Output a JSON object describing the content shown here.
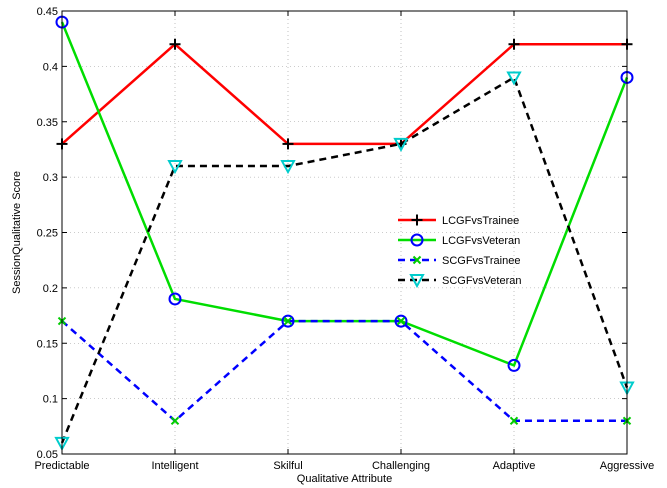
{
  "chart_data": {
    "type": "line",
    "categories": [
      "Predictable",
      "Intelligent",
      "Skilful",
      "Challenging",
      "Adaptive",
      "Aggressive"
    ],
    "xlabel": "Qualitative Attribute",
    "ylabel": "SessionQualitative Score",
    "ylim": [
      0.05,
      0.45
    ],
    "yticks": [
      "0.05",
      "0.1",
      "0.15",
      "0.2",
      "0.25",
      "0.3",
      "0.35",
      "0.4",
      "0.45"
    ],
    "grid": true,
    "legend_position": "right-center",
    "series": [
      {
        "name": "LCGFvsTrainee",
        "values": [
          0.33,
          0.42,
          0.33,
          0.33,
          0.42,
          0.42
        ],
        "color": "#ff0000",
        "line_style": "solid",
        "marker": "plus",
        "marker_color": "#000000"
      },
      {
        "name": "LCGFvsVeteran",
        "values": [
          0.44,
          0.19,
          0.17,
          0.17,
          0.13,
          0.39
        ],
        "color": "#00dd00",
        "line_style": "solid",
        "marker": "circle",
        "marker_color": "#0000ff"
      },
      {
        "name": "SCGFvsTrainee",
        "values": [
          0.17,
          0.08,
          0.17,
          0.17,
          0.08,
          0.08
        ],
        "color": "#0000ff",
        "line_style": "dashed",
        "marker": "x",
        "marker_color": "#00cc00"
      },
      {
        "name": "SCGFvsVeteran",
        "values": [
          0.06,
          0.31,
          0.31,
          0.33,
          0.39,
          0.11
        ],
        "color": "#000000",
        "line_style": "dashed",
        "marker": "triangle-down",
        "marker_color": "#00cccc"
      }
    ]
  }
}
